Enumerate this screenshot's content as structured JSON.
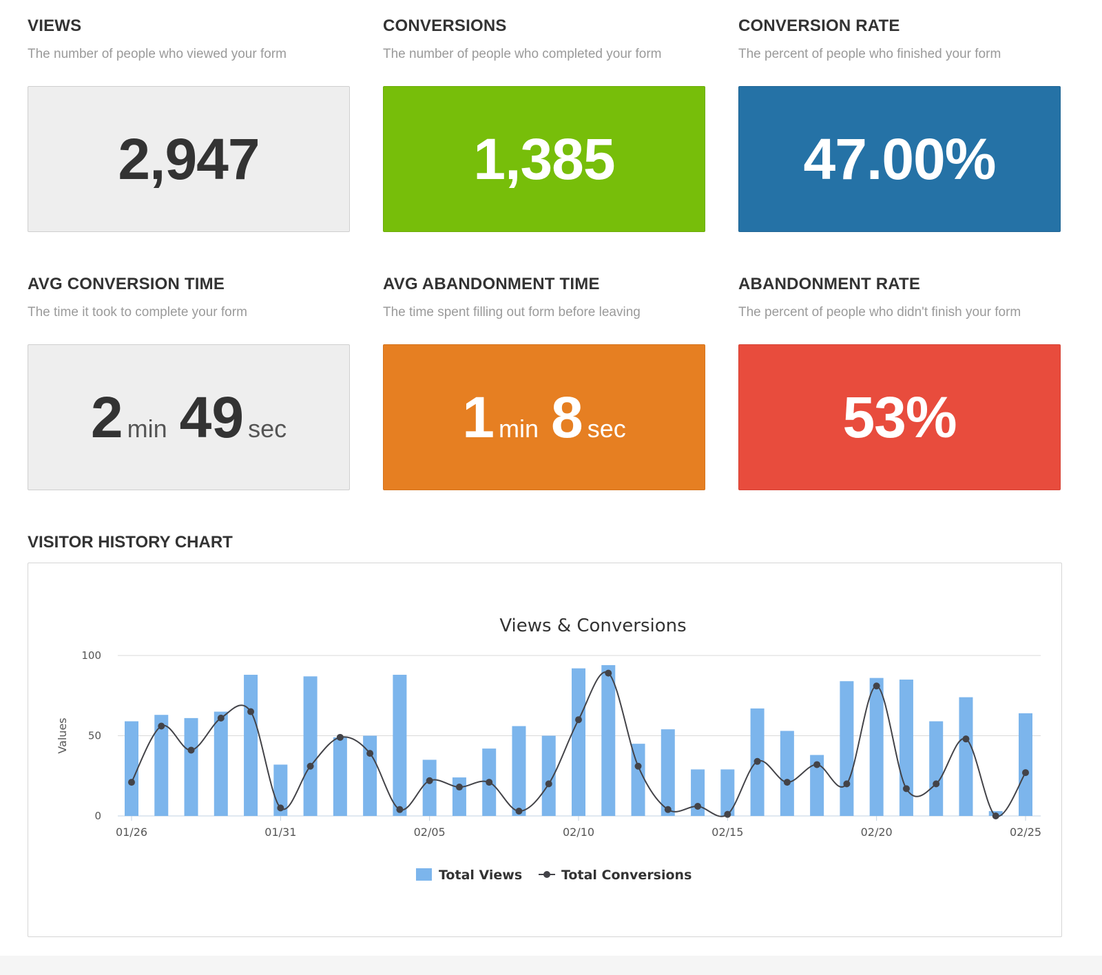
{
  "metrics": {
    "views": {
      "title": "VIEWS",
      "description": "The number of people who viewed your form",
      "value": "2,947",
      "color": "#eeeeee"
    },
    "conversions": {
      "title": "CONVERSIONS",
      "description": "The number of people who completed your form",
      "value": "1,385",
      "color": "#77be0a"
    },
    "conversion_rate": {
      "title": "CONVERSION RATE",
      "description": "The percent of people who finished your form",
      "value": "47.00%",
      "color": "#2572a6"
    },
    "avg_conversion_time": {
      "title": "AVG CONVERSION TIME",
      "description": "The time it took to complete your form",
      "minutes": "2",
      "min_unit": "min",
      "seconds": "49",
      "sec_unit": "sec",
      "color": "#eeeeee"
    },
    "avg_abandonment_time": {
      "title": "AVG ABANDONMENT TIME",
      "description": "The time spent filling out form before leaving",
      "minutes": "1",
      "min_unit": "min",
      "seconds": "8",
      "sec_unit": "sec",
      "color": "#e67f22"
    },
    "abandonment_rate": {
      "title": "ABANDONMENT RATE",
      "description": "The percent of people who didn't finish your form",
      "value": "53%",
      "color": "#e84c3d"
    }
  },
  "chart_section": {
    "title": "VISITOR HISTORY CHART"
  },
  "chart_data": {
    "type": "bar",
    "title": "Views & Conversions",
    "xlabel": "",
    "ylabel": "Values",
    "ylim": [
      0,
      100
    ],
    "yticks": [
      0,
      50,
      100
    ],
    "x_tick_labels": [
      "01/26",
      "01/31",
      "02/05",
      "02/10",
      "02/15",
      "02/20",
      "02/25"
    ],
    "x_tick_every": 5,
    "grid": true,
    "legend_position": "bottom",
    "categories": [
      "01/26",
      "01/27",
      "01/28",
      "01/29",
      "01/30",
      "01/31",
      "02/01",
      "02/02",
      "02/03",
      "02/04",
      "02/05",
      "02/06",
      "02/07",
      "02/08",
      "02/09",
      "02/10",
      "02/11",
      "02/12",
      "02/13",
      "02/14",
      "02/15",
      "02/16",
      "02/17",
      "02/18",
      "02/19",
      "02/20",
      "02/21",
      "02/22",
      "02/23",
      "02/24",
      "02/25"
    ],
    "series": [
      {
        "name": "Total Views",
        "kind": "bar",
        "color": "#7cb5ec",
        "values": [
          59,
          63,
          61,
          65,
          88,
          32,
          87,
          49,
          50,
          88,
          35,
          24,
          42,
          56,
          50,
          92,
          94,
          45,
          54,
          29,
          29,
          67,
          53,
          38,
          84,
          86,
          85,
          59,
          74,
          3,
          64
        ]
      },
      {
        "name": "Total Conversions",
        "kind": "line",
        "color": "#434348",
        "values": [
          21,
          56,
          41,
          61,
          65,
          5,
          31,
          49,
          39,
          4,
          22,
          18,
          21,
          3,
          20,
          60,
          89,
          31,
          4,
          6,
          1,
          34,
          21,
          32,
          20,
          81,
          17,
          20,
          48,
          0,
          27
        ]
      }
    ]
  }
}
